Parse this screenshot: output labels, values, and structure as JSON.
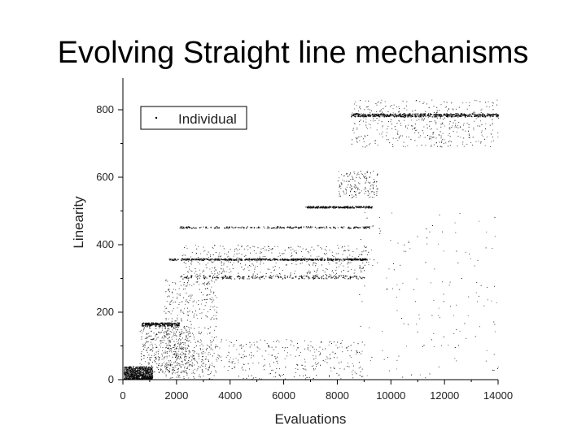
{
  "slide": {
    "title": "Evolving Straight line mechanisms"
  },
  "chart_data": {
    "type": "scatter",
    "title": "",
    "xlabel": "Evaluations",
    "ylabel": "Linearity",
    "xlim": [
      0,
      14000
    ],
    "ylim": [
      0,
      800
    ],
    "xticks": [
      0,
      2000,
      4000,
      6000,
      8000,
      10000,
      12000,
      14000
    ],
    "yticks": [
      0,
      200,
      400,
      600,
      800
    ],
    "grid": false,
    "legend": {
      "position": "top-left",
      "entries": [
        "Individual"
      ]
    },
    "series": [
      {
        "name": "Individual",
        "marker_color": "#000000",
        "bands": [
          {
            "x": [
              0,
              1100
            ],
            "y": [
              0,
              40
            ],
            "density": "high"
          },
          {
            "x": [
              600,
              2500
            ],
            "y": [
              20,
              160
            ],
            "density": "medium"
          },
          {
            "x": [
              700,
              2100
            ],
            "y": [
              160,
              170
            ],
            "density": "line"
          },
          {
            "x": [
              1500,
              3500
            ],
            "y": [
              0,
              300
            ],
            "density": "medium"
          },
          {
            "x": [
              1600,
              9000
            ],
            "y": [
              0,
              120
            ],
            "density": "medium"
          },
          {
            "x": [
              2100,
              9000
            ],
            "y": [
              300,
              310
            ],
            "density": "line"
          },
          {
            "x": [
              1700,
              9100
            ],
            "y": [
              355,
              360
            ],
            "density": "thick-line"
          },
          {
            "x": [
              2200,
              9200
            ],
            "y": [
              310,
              400
            ],
            "density": "medium"
          },
          {
            "x": [
              2100,
              9200
            ],
            "y": [
              450,
              455
            ],
            "density": "line"
          },
          {
            "x": [
              6800,
              9300
            ],
            "y": [
              510,
              515
            ],
            "density": "line"
          },
          {
            "x": [
              8500,
              14000
            ],
            "y": [
              780,
              790
            ],
            "density": "thick-line"
          },
          {
            "x": [
              8500,
              14000
            ],
            "y": [
              690,
              830
            ],
            "density": "medium"
          },
          {
            "x": [
              8000,
              9500
            ],
            "y": [
              540,
              620
            ],
            "density": "low"
          },
          {
            "x": [
              8800,
              14000
            ],
            "y": [
              0,
              500
            ],
            "density": "low"
          }
        ]
      }
    ]
  }
}
